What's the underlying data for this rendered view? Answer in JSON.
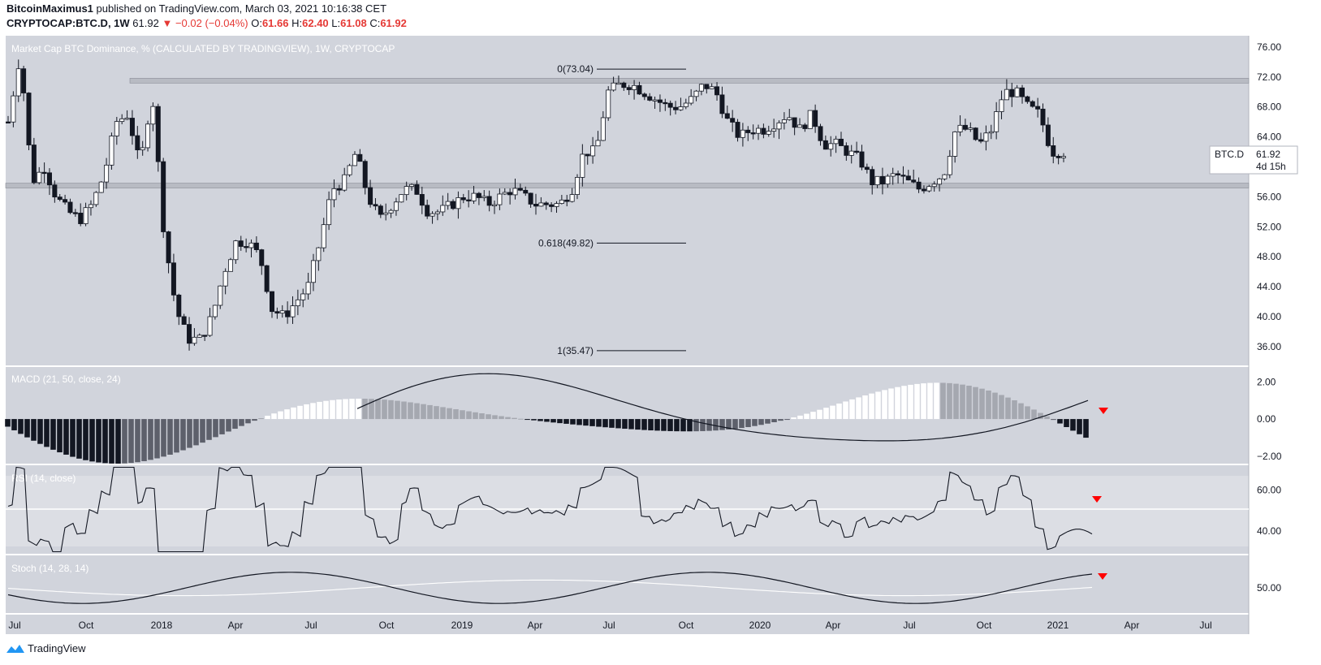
{
  "header": {
    "publisher": "BitcoinMaximus1",
    "published_text": "published on TradingView.com, March 03, 2021 10:16:38 CET",
    "symbol_tf": "CRYPTOCAP:BTC.D, 1W",
    "last": "61.92",
    "change": "−0.02 (−0.04%)",
    "o_label": "O:",
    "o": "61.66",
    "h_label": "H:",
    "h": "62.40",
    "l_label": "L:",
    "l": "61.08",
    "c_label": "C:",
    "c": "61.92"
  },
  "main_pane": {
    "title": "Market Cap BTC Dominance, % (CALCULATED BY TRADINGVIEW), 1W, CRYPTOCAP",
    "price_tag": "BTC.D",
    "price_value": "61.92",
    "countdown": "4d 15h"
  },
  "indicators": {
    "macd_title": "MACD (21, 50, close, 24)",
    "rsi_title": "RSI (14, close)",
    "stoch_title": "Stoch (14, 28, 14)"
  },
  "footer": {
    "brand": "TradingView"
  },
  "colors": {
    "pane_bg": "#d1d4dc",
    "up_candle": "#ffffff",
    "down_candle": "#131722",
    "signal_arrow": "#ff0000",
    "band": "#dcdee4"
  },
  "chart_data": [
    {
      "type": "candlestick",
      "title": "Market Cap BTC Dominance, % (CALCULATED BY TRADINGVIEW), 1W, CRYPTOCAP",
      "y_ticks": [
        "76.00",
        "72.00",
        "68.00",
        "64.00",
        "60.00",
        "56.00",
        "52.00",
        "48.00",
        "44.00",
        "40.00",
        "36.00"
      ],
      "ylim": [
        33.5,
        77.5
      ],
      "x_ticks": [
        "Jul",
        "Oct",
        "2018",
        "Apr",
        "Jul",
        "Oct",
        "2019",
        "Apr",
        "Jul",
        "Oct",
        "2020",
        "Apr",
        "Jul",
        "Oct",
        "2021",
        "Apr",
        "Jul"
      ],
      "horizontal_levels": [
        71.5,
        57.5
      ],
      "fib_levels": [
        {
          "label": "0(73.04)",
          "value": 73.04
        },
        {
          "label": "0.618(49.82)",
          "value": 49.82
        },
        {
          "label": "1(35.47)",
          "value": 35.47
        }
      ],
      "close_path": [
        66,
        75,
        58,
        60,
        56,
        54,
        53,
        55,
        59,
        66,
        67,
        60,
        70,
        51,
        41,
        37,
        37,
        40,
        46,
        50,
        50,
        48,
        41,
        40,
        42,
        44,
        50,
        57,
        58,
        62,
        56,
        53,
        55,
        57,
        57,
        54,
        54,
        55,
        56,
        56,
        55,
        56,
        57,
        56,
        55,
        55,
        55,
        57,
        62,
        62,
        70,
        71,
        71,
        70,
        69,
        68,
        68,
        69,
        71,
        70,
        66,
        64,
        65,
        65,
        66,
        67,
        65,
        67,
        63,
        63,
        62,
        61,
        58,
        58,
        59,
        58,
        57,
        58,
        59,
        65,
        65,
        63,
        65,
        70,
        70,
        68,
        67,
        62,
        62
      ]
    },
    {
      "type": "bar",
      "title": "MACD (21, 50, close, 24)",
      "y_ticks": [
        "2.00",
        "0.00",
        "−2.00"
      ],
      "ylim": [
        -2.4,
        2.8
      ]
    },
    {
      "type": "line",
      "title": "RSI (14, close)",
      "y_ticks": [
        "60.00",
        "40.00"
      ],
      "ylim": [
        29,
        72
      ]
    },
    {
      "type": "line",
      "title": "Stoch (14, 28, 14)",
      "y_ticks": [
        "50.00"
      ],
      "ylim": [
        30,
        75
      ]
    }
  ]
}
